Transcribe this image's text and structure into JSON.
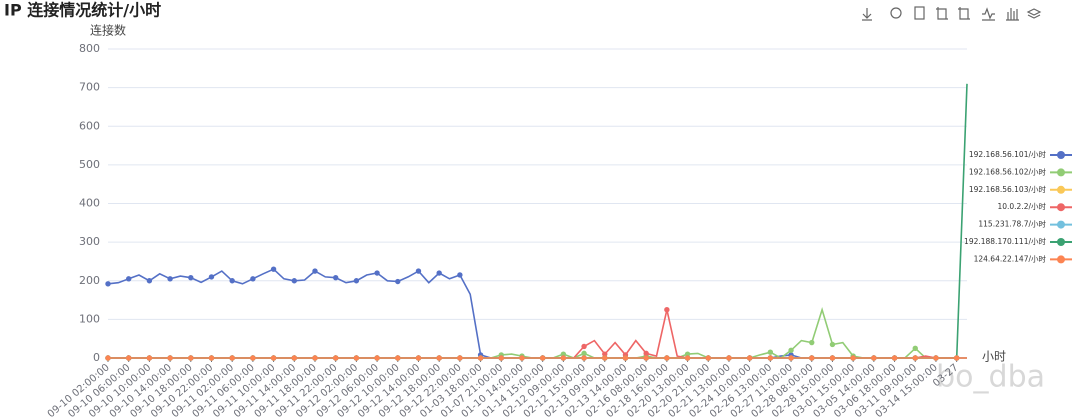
{
  "chart_data": {
    "type": "line",
    "title": "IP 连接情况统计/小时",
    "y_label": "连接数",
    "x_label": "小时",
    "watermark": "bo_dba",
    "categories": [
      "09-10 02:00:00",
      null,
      "09-10 06:00:00",
      null,
      "09-10 10:00:00",
      null,
      "09-10 14:00:00",
      null,
      "09-10 18:00:00",
      null,
      "09-10 22:00:00",
      null,
      "09-11 02:00:00",
      null,
      "09-11 06:00:00",
      null,
      "09-11 10:00:00",
      null,
      "09-11 14:00:00",
      null,
      "09-11 18:00:00",
      null,
      "09-11 22:00:00",
      null,
      "09-12 02:00:00",
      null,
      "09-12 06:00:00",
      null,
      "09-12 10:00:00",
      null,
      "09-12 14:00:00",
      null,
      "09-12 18:00:00",
      null,
      "09-12 22:00:00",
      null,
      "01-03 18:00:00",
      null,
      "01-07 21:00:00",
      null,
      "01-10 14:00:00",
      null,
      "01-14 15:00:00",
      null,
      "02-12 09:00:00",
      null,
      "02-12 15:00:00",
      null,
      "02-13 09:00:00",
      null,
      "02-13 14:00:00",
      null,
      "02-16 08:00:00",
      null,
      "02-18 16:00:00",
      null,
      "02-20 13:00:00",
      null,
      "02-20 21:00:00",
      null,
      "02-21 13:00:00",
      null,
      "02-24 10:00:00",
      null,
      "02-26 13:00:00",
      null,
      "02-27 11:00:00",
      null,
      "02-28 08:00:00",
      null,
      "02-28 15:00:00",
      null,
      "03-01 15:00:00",
      null,
      "03-05 14:00:00",
      null,
      "03-06 18:00:00",
      null,
      "03-11 09:00:00",
      null,
      "03-14 15:00:00",
      null,
      "03-27",
      null
    ],
    "series": [
      {
        "name": "192.168.56.101/小时",
        "color": "#5470c6",
        "values": [
          192,
          195,
          205,
          215,
          200,
          218,
          205,
          212,
          208,
          196,
          210,
          225,
          200,
          192,
          205,
          218,
          230,
          205,
          200,
          202,
          225,
          210,
          208,
          195,
          200,
          215,
          220,
          200,
          198,
          210,
          225,
          195,
          220,
          205,
          215,
          165,
          8,
          0,
          0,
          0,
          0,
          0,
          0,
          0,
          0,
          0,
          0,
          0,
          0,
          0,
          0,
          0,
          0,
          0,
          0,
          0,
          0,
          0,
          0,
          0,
          0,
          0,
          0,
          0,
          0,
          5,
          8,
          0,
          0,
          0,
          0,
          0,
          0,
          0,
          0,
          0,
          0,
          0,
          0,
          0,
          0,
          0,
          0,
          0
        ]
      },
      {
        "name": "192.168.56.102/小时",
        "color": "#91cc75",
        "values": [
          0,
          0,
          0,
          0,
          0,
          0,
          0,
          0,
          0,
          0,
          0,
          0,
          0,
          0,
          0,
          0,
          0,
          0,
          0,
          0,
          0,
          0,
          0,
          0,
          0,
          0,
          0,
          0,
          0,
          0,
          0,
          0,
          0,
          0,
          0,
          0,
          0,
          0,
          8,
          10,
          5,
          0,
          0,
          0,
          10,
          0,
          12,
          0,
          0,
          0,
          0,
          0,
          5,
          0,
          0,
          0,
          10,
          12,
          0,
          0,
          0,
          0,
          0,
          8,
          15,
          0,
          20,
          45,
          40,
          125,
          35,
          40,
          5,
          0,
          0,
          0,
          0,
          0,
          25,
          0,
          0,
          0,
          0,
          0
        ]
      },
      {
        "name": "192.168.56.103/小时",
        "color": "#fac858",
        "values": [
          0,
          0,
          0,
          0,
          0,
          0,
          0,
          0,
          0,
          0,
          0,
          0,
          0,
          0,
          0,
          0,
          0,
          0,
          0,
          0,
          0,
          0,
          0,
          0,
          0,
          0,
          0,
          0,
          0,
          0,
          0,
          0,
          0,
          0,
          0,
          0,
          0,
          0,
          0,
          0,
          0,
          0,
          0,
          0,
          0,
          0,
          0,
          0,
          0,
          0,
          0,
          0,
          0,
          0,
          0,
          0,
          0,
          0,
          0,
          0,
          0,
          0,
          0,
          0,
          0,
          0,
          0,
          0,
          0,
          0,
          0,
          0,
          0,
          0,
          0,
          0,
          0,
          0,
          0,
          0,
          0,
          0,
          0,
          0
        ]
      },
      {
        "name": "10.0.2.2/小时",
        "color": "#ee6666",
        "values": [
          0,
          0,
          0,
          0,
          0,
          0,
          0,
          0,
          0,
          0,
          0,
          0,
          0,
          0,
          0,
          0,
          0,
          0,
          0,
          0,
          0,
          0,
          0,
          0,
          0,
          0,
          0,
          0,
          0,
          0,
          0,
          0,
          0,
          0,
          0,
          0,
          0,
          0,
          0,
          0,
          0,
          0,
          0,
          0,
          0,
          0,
          30,
          45,
          10,
          40,
          8,
          45,
          12,
          5,
          125,
          5,
          0,
          0,
          0,
          0,
          0,
          0,
          0,
          0,
          0,
          0,
          0,
          0,
          0,
          0,
          0,
          0,
          0,
          0,
          0,
          0,
          0,
          0,
          0,
          5,
          0,
          0,
          0,
          0
        ]
      },
      {
        "name": "115.231.78.7/小时",
        "color": "#73c0de",
        "values": [
          0,
          0,
          0,
          0,
          0,
          0,
          0,
          0,
          0,
          0,
          0,
          0,
          0,
          0,
          0,
          0,
          0,
          0,
          0,
          0,
          0,
          0,
          0,
          0,
          0,
          0,
          0,
          0,
          0,
          0,
          0,
          0,
          0,
          0,
          0,
          0,
          0,
          0,
          0,
          0,
          0,
          0,
          0,
          0,
          0,
          0,
          0,
          0,
          0,
          0,
          0,
          0,
          0,
          0,
          0,
          0,
          0,
          0,
          0,
          0,
          0,
          0,
          0,
          0,
          0,
          0,
          0,
          0,
          0,
          0,
          0,
          0,
          0,
          0,
          0,
          0,
          0,
          0,
          0,
          0,
          0,
          0,
          0,
          0
        ]
      },
      {
        "name": "192.188.170.111/小时",
        "color": "#3ba272",
        "values": [
          0,
          0,
          0,
          0,
          0,
          0,
          0,
          0,
          0,
          0,
          0,
          0,
          0,
          0,
          0,
          0,
          0,
          0,
          0,
          0,
          0,
          0,
          0,
          0,
          0,
          0,
          0,
          0,
          0,
          0,
          0,
          0,
          0,
          0,
          0,
          0,
          0,
          0,
          0,
          0,
          0,
          0,
          0,
          0,
          0,
          0,
          0,
          0,
          0,
          0,
          0,
          0,
          0,
          0,
          0,
          0,
          0,
          0,
          0,
          0,
          0,
          0,
          0,
          0,
          0,
          0,
          0,
          0,
          0,
          0,
          0,
          0,
          0,
          0,
          0,
          0,
          0,
          0,
          0,
          0,
          0,
          0,
          0,
          710
        ]
      },
      {
        "name": "124.64.22.147/小时",
        "color": "#fc8452",
        "values": [
          0,
          0,
          0,
          0,
          0,
          0,
          0,
          0,
          0,
          0,
          0,
          0,
          0,
          0,
          0,
          0,
          0,
          0,
          0,
          0,
          0,
          0,
          0,
          0,
          0,
          0,
          0,
          0,
          0,
          0,
          0,
          0,
          0,
          0,
          0,
          0,
          0,
          0,
          0,
          0,
          0,
          0,
          0,
          0,
          0,
          0,
          0,
          0,
          0,
          0,
          0,
          0,
          0,
          0,
          0,
          0,
          0,
          0,
          0,
          0,
          0,
          0,
          0,
          0,
          0,
          0,
          0,
          0,
          0,
          0,
          0,
          0,
          0,
          0,
          0,
          0,
          0,
          0,
          0,
          0,
          0,
          0,
          0,
          0
        ]
      }
    ],
    "ylim": [
      0,
      800
    ],
    "yticks": [
      0,
      100,
      200,
      300,
      400,
      500,
      600,
      700,
      800
    ],
    "grid": true,
    "legend": "right"
  }
}
